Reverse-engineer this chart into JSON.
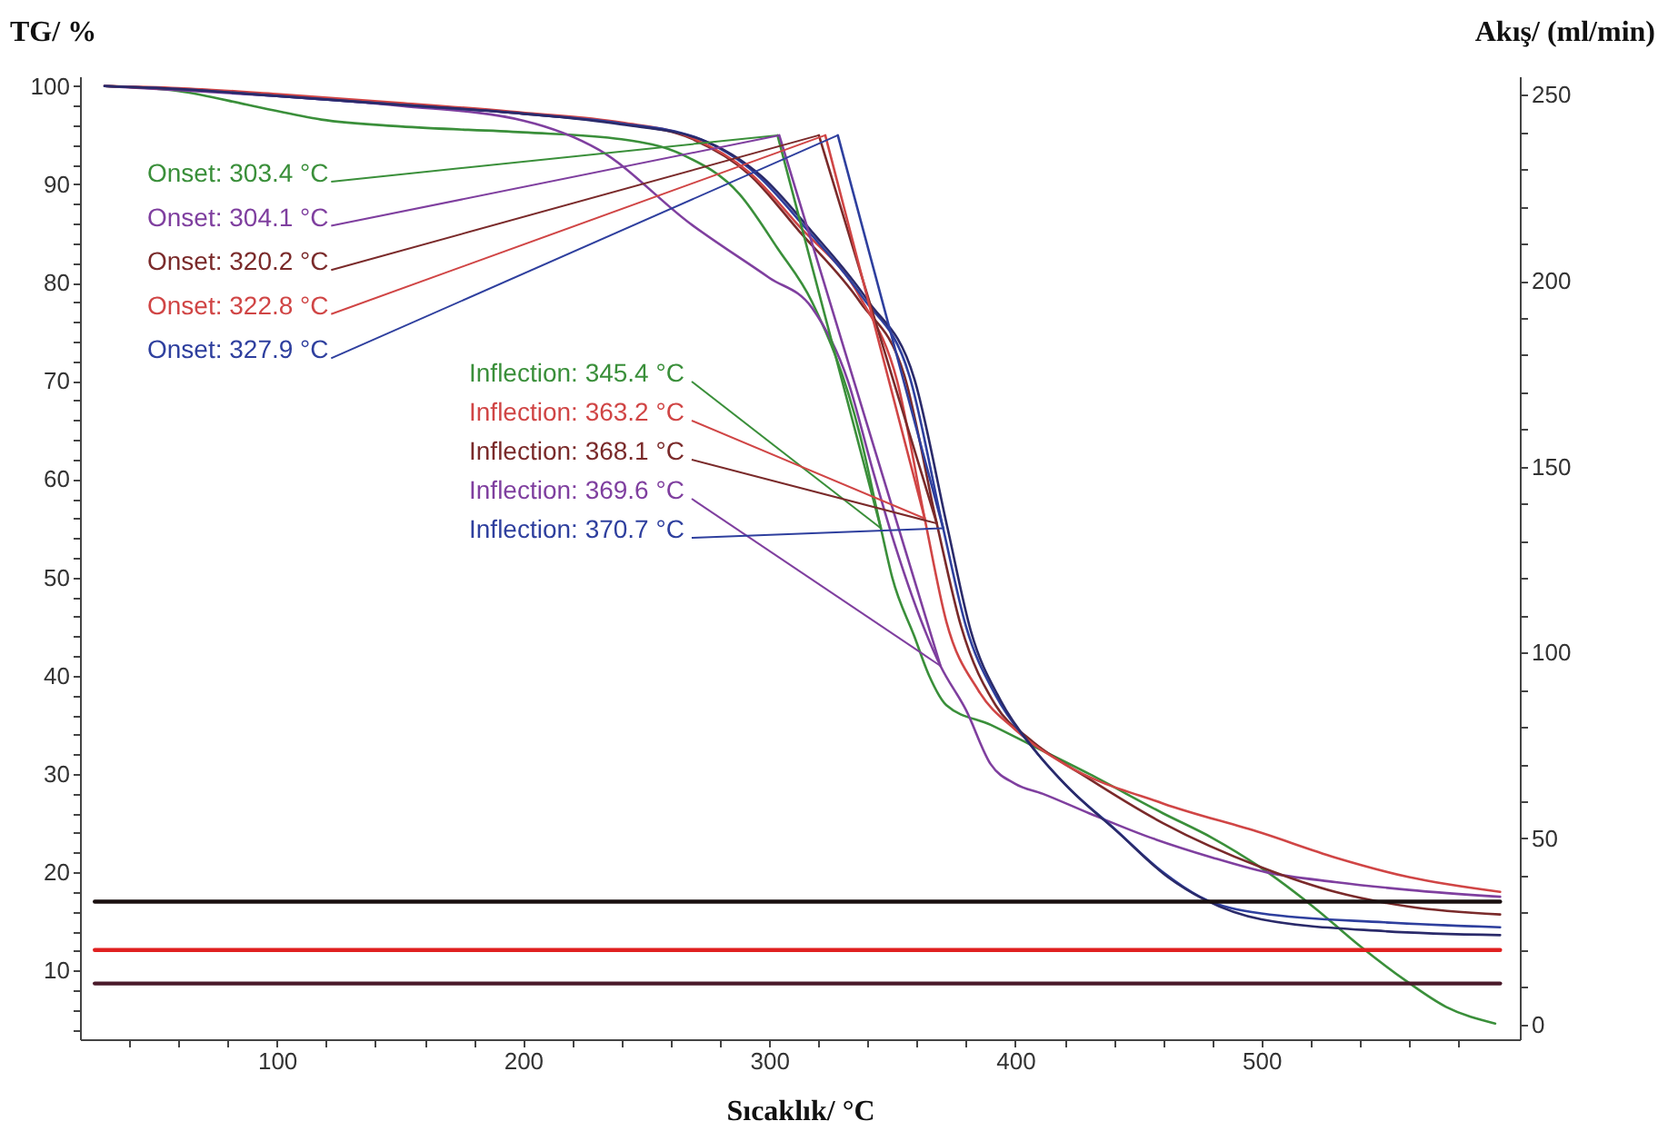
{
  "chart_data": {
    "type": "line",
    "xlabel": "Sıcaklık/ °C",
    "ylabel": "TG/ %",
    "y2label": "Akış/ (ml/min)",
    "xlim": [
      20,
      605
    ],
    "xticks": [
      {
        "value": 40,
        "label": null
      },
      {
        "value": 60,
        "label": null
      },
      {
        "value": 80,
        "label": null
      },
      100,
      {
        "value": 120,
        "label": null
      },
      {
        "value": 140,
        "label": null
      },
      {
        "value": 160,
        "label": null
      },
      {
        "value": 180,
        "label": null
      },
      200,
      {
        "value": 220,
        "label": null
      },
      {
        "value": 240,
        "label": null
      },
      {
        "value": 260,
        "label": null
      },
      {
        "value": 280,
        "label": null
      },
      300,
      {
        "value": 320,
        "label": null
      },
      {
        "value": 340,
        "label": null
      },
      {
        "value": 360,
        "label": null
      },
      {
        "value": 380,
        "label": null
      },
      400,
      {
        "value": 420,
        "label": null
      },
      {
        "value": 440,
        "label": null
      },
      {
        "value": 460,
        "label": null
      },
      {
        "value": 480,
        "label": null
      },
      500,
      {
        "value": 520,
        "label": null
      },
      {
        "value": 540,
        "label": null
      },
      {
        "value": 560,
        "label": null
      },
      {
        "value": 580,
        "label": null
      }
    ],
    "ylim": [
      3,
      101
    ],
    "yticks": [
      {
        "value": 4,
        "label": null
      },
      {
        "value": 6,
        "label": null
      },
      {
        "value": 8,
        "label": null
      },
      10,
      {
        "value": 12,
        "label": null
      },
      {
        "value": 14,
        "label": null
      },
      {
        "value": 16,
        "label": null
      },
      {
        "value": 18,
        "label": null
      },
      20,
      {
        "value": 22,
        "label": null
      },
      {
        "value": 24,
        "label": null
      },
      {
        "value": 26,
        "label": null
      },
      {
        "value": 28,
        "label": null
      },
      30,
      {
        "value": 32,
        "label": null
      },
      {
        "value": 34,
        "label": null
      },
      {
        "value": 36,
        "label": null
      },
      {
        "value": 38,
        "label": null
      },
      40,
      {
        "value": 42,
        "label": null
      },
      {
        "value": 44,
        "label": null
      },
      {
        "value": 46,
        "label": null
      },
      {
        "value": 48,
        "label": null
      },
      50,
      {
        "value": 52,
        "label": null
      },
      {
        "value": 54,
        "label": null
      },
      {
        "value": 56,
        "label": null
      },
      {
        "value": 58,
        "label": null
      },
      60,
      {
        "value": 62,
        "label": null
      },
      {
        "value": 64,
        "label": null
      },
      {
        "value": 66,
        "label": null
      },
      {
        "value": 68,
        "label": null
      },
      70,
      {
        "value": 72,
        "label": null
      },
      {
        "value": 74,
        "label": null
      },
      {
        "value": 76,
        "label": null
      },
      {
        "value": 78,
        "label": null
      },
      80,
      {
        "value": 82,
        "label": null
      },
      {
        "value": 84,
        "label": null
      },
      {
        "value": 86,
        "label": null
      },
      {
        "value": 88,
        "label": null
      },
      90,
      {
        "value": 92,
        "label": null
      },
      {
        "value": 94,
        "label": null
      },
      {
        "value": 96,
        "label": null
      },
      {
        "value": 98,
        "label": null
      },
      100
    ],
    "y2lim": [
      -4,
      255
    ],
    "y2ticks": [
      0,
      {
        "value": 10,
        "label": null
      },
      {
        "value": 20,
        "label": null
      },
      {
        "value": 30,
        "label": null
      },
      {
        "value": 40,
        "label": null
      },
      50,
      {
        "value": 60,
        "label": null
      },
      {
        "value": 70,
        "label": null
      },
      {
        "value": 80,
        "label": null
      },
      {
        "value": 90,
        "label": null
      },
      100,
      {
        "value": 110,
        "label": null
      },
      {
        "value": 120,
        "label": null
      },
      {
        "value": 130,
        "label": null
      },
      {
        "value": 140,
        "label": null
      },
      150,
      {
        "value": 160,
        "label": null
      },
      {
        "value": 170,
        "label": null
      },
      {
        "value": 180,
        "label": null
      },
      {
        "value": 190,
        "label": null
      },
      200,
      {
        "value": 210,
        "label": null
      },
      {
        "value": 220,
        "label": null
      },
      {
        "value": 230,
        "label": null
      },
      {
        "value": 240,
        "label": null
      },
      250
    ],
    "series": [
      {
        "color": "#3a8f3a",
        "x": [
          30,
          60,
          90,
          118,
          150,
          200,
          240,
          265,
          288,
          303.4,
          317.5,
          337,
          345.4,
          350,
          359,
          365,
          372,
          390,
          406,
          430,
          460,
          480,
          499,
          522,
          540,
          559,
          575,
          595
        ],
        "values": [
          100,
          99.5,
          98,
          96.6,
          95.9,
          95.3,
          94.6,
          93,
          89,
          83.5,
          78,
          64.4,
          55,
          50,
          44,
          40,
          37,
          35,
          33,
          30,
          26,
          23.5,
          20.6,
          16.3,
          12.5,
          8.9,
          6.3,
          4.6
        ]
      },
      {
        "color": "#7f3f9f",
        "x": [
          30,
          60,
          100,
          150,
          200,
          231,
          268,
          300,
          317.5,
          332,
          342,
          349,
          369.6,
          380,
          390,
          400,
          411,
          430,
          453,
          480,
          502,
          530,
          560,
          597
        ],
        "values": [
          100,
          99.6,
          99,
          98,
          96.5,
          93.5,
          86,
          80.5,
          77.4,
          70,
          61,
          55,
          41,
          36.5,
          31,
          29,
          28,
          26,
          23.7,
          21.5,
          20,
          19,
          18.2,
          17.5
        ]
      },
      {
        "color": "#7a2a2a",
        "x": [
          30,
          60,
          100,
          150,
          200,
          240,
          268,
          292,
          312,
          337,
          355,
          368.1,
          378,
          392,
          406,
          430,
          460,
          500,
          530,
          560,
          597
        ],
        "values": [
          100,
          99.7,
          99.1,
          98.2,
          97.2,
          96.2,
          94.7,
          91,
          85.3,
          78,
          70.5,
          55.5,
          45,
          37,
          33.5,
          29.5,
          25,
          20.5,
          18,
          16.5,
          15.7
        ]
      },
      {
        "color": "#d04545",
        "x": [
          30,
          60,
          100,
          150,
          200,
          240,
          268,
          292,
          312,
          337,
          352,
          363.2,
          372,
          385,
          400,
          420,
          460,
          500,
          530,
          560,
          597
        ],
        "values": [
          100,
          99.8,
          99.2,
          98.3,
          97.3,
          96.3,
          94.8,
          91.2,
          85.8,
          78.5,
          70,
          56,
          45.5,
          38.5,
          34.5,
          31,
          27,
          24,
          21.5,
          19.5,
          18
        ]
      },
      {
        "color": "#2e3f9e",
        "x": [
          30,
          60,
          100,
          150,
          200,
          240,
          270,
          295,
          315,
          338,
          357,
          370.7,
          380,
          392,
          406,
          420,
          440,
          460,
          475,
          500,
          550,
          597
        ],
        "values": [
          100,
          99.7,
          99,
          98.1,
          97.2,
          96.2,
          94.8,
          91,
          85.5,
          78.5,
          70.5,
          55,
          45,
          38,
          33,
          29,
          24.5,
          20,
          17.5,
          15.8,
          14.9,
          14.4
        ]
      },
      {
        "color": "#2a2a6a",
        "x": [
          30,
          60,
          100,
          150,
          200,
          240,
          272,
          297,
          317,
          340,
          359,
          372.5,
          382,
          394,
          408,
          422,
          442,
          462,
          477,
          500,
          550,
          597
        ],
        "values": [
          100,
          99.7,
          99,
          98.1,
          97.2,
          96.1,
          94.6,
          90.8,
          85.3,
          78.2,
          70.2,
          55,
          44.5,
          37.5,
          32.4,
          28.5,
          24,
          19.5,
          17.2,
          15.2,
          14,
          13.6
        ]
      },
      {
        "color": "#3a8f3a",
        "x": [
          303.4,
          345.4
        ],
        "values": [
          95,
          55
        ]
      },
      {
        "color": "#7f3f9f",
        "x": [
          304.1,
          369.6
        ],
        "values": [
          95,
          41
        ]
      },
      {
        "color": "#7a2a2a",
        "x": [
          320.2,
          368.1
        ],
        "values": [
          95,
          55.5
        ]
      },
      {
        "color": "#d04545",
        "x": [
          322.8,
          363.2
        ],
        "values": [
          95,
          56
        ]
      },
      {
        "color": "#2e3f9e",
        "x": [
          327.9,
          370.7
        ],
        "values": [
          95,
          55
        ]
      },
      {
        "color": "#1a1010",
        "axis": "y2",
        "x": [
          26,
          597
        ],
        "values": [
          33,
          33
        ]
      },
      {
        "color": "#e02020",
        "axis": "y2",
        "x": [
          26,
          597
        ],
        "values": [
          20,
          20
        ]
      },
      {
        "color": "#4a1a2a",
        "axis": "y2",
        "x": [
          26,
          597
        ],
        "values": [
          11,
          11
        ]
      }
    ],
    "annotations": [
      {
        "text": "Onset: 303.4 °C",
        "x": 303.4,
        "y": 95
      },
      {
        "text": "Onset: 304.1 °C",
        "x": 304.1,
        "y": 95
      },
      {
        "text": "Onset: 320.2 °C",
        "x": 320.2,
        "y": 95
      },
      {
        "text": "Onset: 322.8 °C",
        "x": 322.8,
        "y": 95
      },
      {
        "text": "Onset: 327.9 °C",
        "x": 327.9,
        "y": 95
      },
      {
        "text": "Inflection: 345.4 °C",
        "x": 345.4,
        "y": 55
      },
      {
        "text": "Inflection: 363.2 °C",
        "x": 363.2,
        "y": 56
      },
      {
        "text": "Inflection: 368.1 °C",
        "x": 368.1,
        "y": 55.5
      },
      {
        "text": "Inflection: 369.6 °C",
        "x": 369.6,
        "y": 41
      },
      {
        "text": "Inflection: 370.7 °C",
        "x": 370.7,
        "y": 55
      }
    ]
  }
}
